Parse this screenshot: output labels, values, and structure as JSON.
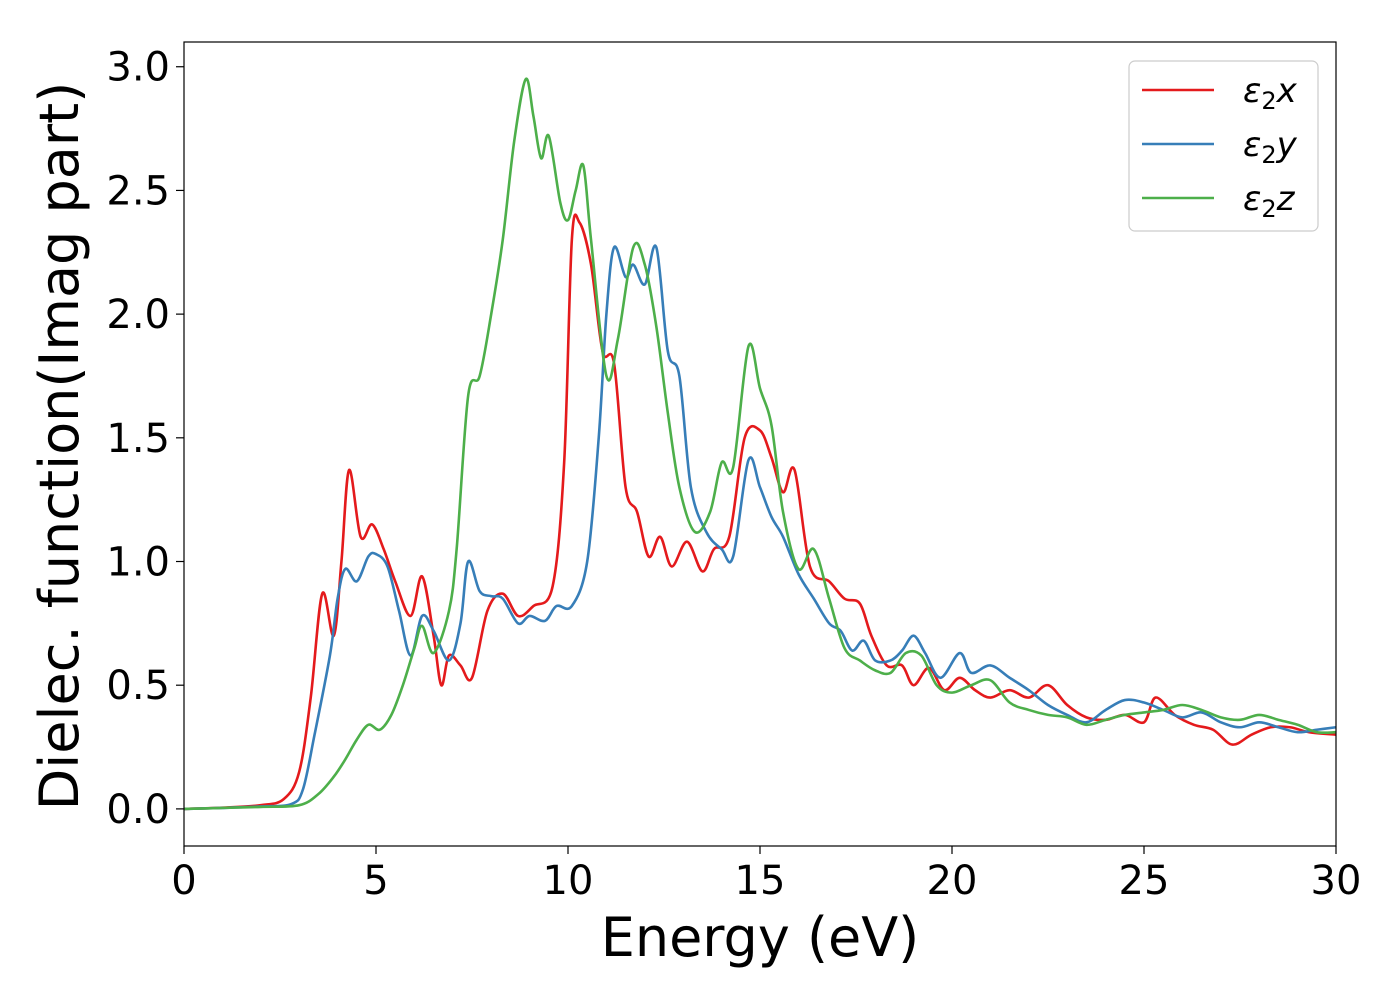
{
  "chart_data": {
    "type": "line",
    "xlabel": "Energy (eV)",
    "ylabel": "Dielec. function(Imag part)",
    "xlim": [
      0,
      30
    ],
    "ylim": [
      -0.15,
      3.1
    ],
    "xticks": [
      "0",
      "5",
      "10",
      "15",
      "20",
      "25",
      "30"
    ],
    "yticks": [
      "0.0",
      "0.5",
      "1.0",
      "1.5",
      "2.0",
      "2.5",
      "3.0"
    ],
    "legend_position": "top-right",
    "grid": false,
    "series": [
      {
        "name": "ε2x",
        "legend_main": "ε",
        "legend_sub": "2",
        "legend_suffix": "x",
        "color": "#e41a1c",
        "points": [
          [
            0,
            0
          ],
          [
            1,
            0.005
          ],
          [
            2,
            0.015
          ],
          [
            2.6,
            0.04
          ],
          [
            3.0,
            0.15
          ],
          [
            3.3,
            0.45
          ],
          [
            3.6,
            0.87
          ],
          [
            3.9,
            0.7
          ],
          [
            4.1,
            1.0
          ],
          [
            4.3,
            1.37
          ],
          [
            4.6,
            1.1
          ],
          [
            4.9,
            1.15
          ],
          [
            5.2,
            1.05
          ],
          [
            5.5,
            0.92
          ],
          [
            5.9,
            0.78
          ],
          [
            6.2,
            0.94
          ],
          [
            6.5,
            0.7
          ],
          [
            6.7,
            0.5
          ],
          [
            6.9,
            0.62
          ],
          [
            7.2,
            0.58
          ],
          [
            7.5,
            0.53
          ],
          [
            7.9,
            0.8
          ],
          [
            8.3,
            0.87
          ],
          [
            8.7,
            0.78
          ],
          [
            9.1,
            0.82
          ],
          [
            9.6,
            0.9
          ],
          [
            9.9,
            1.4
          ],
          [
            10.1,
            2.3
          ],
          [
            10.3,
            2.37
          ],
          [
            10.6,
            2.2
          ],
          [
            10.9,
            1.85
          ],
          [
            11.2,
            1.8
          ],
          [
            11.5,
            1.3
          ],
          [
            11.8,
            1.2
          ],
          [
            12.1,
            1.02
          ],
          [
            12.4,
            1.1
          ],
          [
            12.7,
            0.98
          ],
          [
            13.1,
            1.08
          ],
          [
            13.5,
            0.96
          ],
          [
            13.8,
            1.05
          ],
          [
            14.2,
            1.1
          ],
          [
            14.6,
            1.5
          ],
          [
            15.0,
            1.53
          ],
          [
            15.3,
            1.42
          ],
          [
            15.6,
            1.28
          ],
          [
            15.9,
            1.37
          ],
          [
            16.3,
            0.98
          ],
          [
            16.8,
            0.92
          ],
          [
            17.2,
            0.85
          ],
          [
            17.6,
            0.83
          ],
          [
            17.9,
            0.7
          ],
          [
            18.3,
            0.58
          ],
          [
            18.7,
            0.58
          ],
          [
            19.0,
            0.5
          ],
          [
            19.4,
            0.57
          ],
          [
            19.8,
            0.48
          ],
          [
            20.2,
            0.53
          ],
          [
            20.6,
            0.48
          ],
          [
            21.0,
            0.45
          ],
          [
            21.5,
            0.48
          ],
          [
            22.0,
            0.45
          ],
          [
            22.5,
            0.5
          ],
          [
            23.0,
            0.42
          ],
          [
            23.5,
            0.37
          ],
          [
            24.0,
            0.36
          ],
          [
            24.5,
            0.38
          ],
          [
            25.0,
            0.35
          ],
          [
            25.3,
            0.45
          ],
          [
            25.8,
            0.38
          ],
          [
            26.3,
            0.34
          ],
          [
            26.8,
            0.32
          ],
          [
            27.3,
            0.26
          ],
          [
            27.8,
            0.3
          ],
          [
            28.3,
            0.33
          ],
          [
            28.8,
            0.33
          ],
          [
            29.3,
            0.31
          ],
          [
            30,
            0.3
          ]
        ]
      },
      {
        "name": "ε2y",
        "legend_main": "ε",
        "legend_sub": "2",
        "legend_suffix": "y",
        "color": "#377eb8",
        "points": [
          [
            0,
            0
          ],
          [
            1,
            0.004
          ],
          [
            2,
            0.01
          ],
          [
            2.8,
            0.02
          ],
          [
            3.1,
            0.08
          ],
          [
            3.4,
            0.3
          ],
          [
            3.8,
            0.62
          ],
          [
            4.0,
            0.85
          ],
          [
            4.2,
            0.97
          ],
          [
            4.5,
            0.92
          ],
          [
            4.8,
            1.02
          ],
          [
            5.0,
            1.03
          ],
          [
            5.3,
            0.98
          ],
          [
            5.6,
            0.8
          ],
          [
            5.9,
            0.62
          ],
          [
            6.2,
            0.78
          ],
          [
            6.5,
            0.72
          ],
          [
            6.9,
            0.6
          ],
          [
            7.2,
            0.75
          ],
          [
            7.4,
            1.0
          ],
          [
            7.7,
            0.88
          ],
          [
            8.0,
            0.86
          ],
          [
            8.3,
            0.85
          ],
          [
            8.7,
            0.75
          ],
          [
            9.0,
            0.78
          ],
          [
            9.4,
            0.76
          ],
          [
            9.7,
            0.82
          ],
          [
            10.1,
            0.82
          ],
          [
            10.5,
            1.0
          ],
          [
            10.8,
            1.5
          ],
          [
            11.0,
            2.0
          ],
          [
            11.2,
            2.27
          ],
          [
            11.5,
            2.15
          ],
          [
            11.7,
            2.2
          ],
          [
            12.0,
            2.12
          ],
          [
            12.3,
            2.27
          ],
          [
            12.6,
            1.85
          ],
          [
            12.9,
            1.75
          ],
          [
            13.2,
            1.3
          ],
          [
            13.6,
            1.12
          ],
          [
            14.0,
            1.05
          ],
          [
            14.3,
            1.02
          ],
          [
            14.7,
            1.41
          ],
          [
            15.0,
            1.3
          ],
          [
            15.3,
            1.18
          ],
          [
            15.6,
            1.1
          ],
          [
            16.0,
            0.95
          ],
          [
            16.4,
            0.85
          ],
          [
            16.8,
            0.75
          ],
          [
            17.1,
            0.72
          ],
          [
            17.4,
            0.64
          ],
          [
            17.7,
            0.68
          ],
          [
            18.0,
            0.6
          ],
          [
            18.4,
            0.6
          ],
          [
            18.7,
            0.64
          ],
          [
            19.0,
            0.7
          ],
          [
            19.3,
            0.63
          ],
          [
            19.7,
            0.53
          ],
          [
            20.2,
            0.63
          ],
          [
            20.5,
            0.55
          ],
          [
            21.0,
            0.58
          ],
          [
            21.5,
            0.53
          ],
          [
            22.0,
            0.48
          ],
          [
            22.5,
            0.42
          ],
          [
            23.0,
            0.38
          ],
          [
            23.5,
            0.35
          ],
          [
            24.0,
            0.4
          ],
          [
            24.5,
            0.44
          ],
          [
            25.0,
            0.43
          ],
          [
            25.5,
            0.4
          ],
          [
            26.0,
            0.37
          ],
          [
            26.5,
            0.39
          ],
          [
            27.0,
            0.35
          ],
          [
            27.5,
            0.33
          ],
          [
            28.0,
            0.35
          ],
          [
            28.5,
            0.33
          ],
          [
            29.0,
            0.31
          ],
          [
            29.5,
            0.32
          ],
          [
            30,
            0.33
          ]
        ]
      },
      {
        "name": "ε2z",
        "legend_main": "ε",
        "legend_sub": "2",
        "legend_suffix": "z",
        "color": "#4daf4a",
        "points": [
          [
            0,
            0
          ],
          [
            1,
            0.004
          ],
          [
            2,
            0.008
          ],
          [
            3.0,
            0.015
          ],
          [
            3.5,
            0.06
          ],
          [
            3.9,
            0.13
          ],
          [
            4.2,
            0.2
          ],
          [
            4.5,
            0.28
          ],
          [
            4.8,
            0.34
          ],
          [
            5.1,
            0.32
          ],
          [
            5.4,
            0.38
          ],
          [
            5.7,
            0.5
          ],
          [
            6.0,
            0.65
          ],
          [
            6.2,
            0.74
          ],
          [
            6.5,
            0.63
          ],
          [
            6.9,
            0.8
          ],
          [
            7.1,
            1.05
          ],
          [
            7.4,
            1.67
          ],
          [
            7.7,
            1.75
          ],
          [
            8.0,
            2.0
          ],
          [
            8.3,
            2.3
          ],
          [
            8.6,
            2.7
          ],
          [
            8.9,
            2.95
          ],
          [
            9.1,
            2.8
          ],
          [
            9.3,
            2.63
          ],
          [
            9.5,
            2.72
          ],
          [
            9.8,
            2.45
          ],
          [
            10.0,
            2.38
          ],
          [
            10.2,
            2.5
          ],
          [
            10.4,
            2.6
          ],
          [
            10.6,
            2.3
          ],
          [
            11.0,
            1.75
          ],
          [
            11.3,
            1.9
          ],
          [
            11.7,
            2.27
          ],
          [
            12.0,
            2.2
          ],
          [
            12.3,
            1.95
          ],
          [
            12.6,
            1.6
          ],
          [
            12.9,
            1.3
          ],
          [
            13.3,
            1.12
          ],
          [
            13.7,
            1.2
          ],
          [
            14.0,
            1.4
          ],
          [
            14.3,
            1.38
          ],
          [
            14.7,
            1.87
          ],
          [
            15.0,
            1.7
          ],
          [
            15.3,
            1.55
          ],
          [
            15.6,
            1.2
          ],
          [
            16.0,
            0.97
          ],
          [
            16.4,
            1.05
          ],
          [
            16.8,
            0.85
          ],
          [
            17.2,
            0.65
          ],
          [
            17.6,
            0.6
          ],
          [
            18.0,
            0.56
          ],
          [
            18.4,
            0.55
          ],
          [
            18.8,
            0.63
          ],
          [
            19.2,
            0.62
          ],
          [
            19.6,
            0.5
          ],
          [
            20.0,
            0.47
          ],
          [
            20.5,
            0.5
          ],
          [
            21.0,
            0.52
          ],
          [
            21.5,
            0.43
          ],
          [
            22.0,
            0.4
          ],
          [
            22.5,
            0.38
          ],
          [
            23.0,
            0.37
          ],
          [
            23.5,
            0.34
          ],
          [
            24.0,
            0.36
          ],
          [
            24.5,
            0.38
          ],
          [
            25.0,
            0.39
          ],
          [
            25.5,
            0.4
          ],
          [
            26.0,
            0.42
          ],
          [
            26.5,
            0.4
          ],
          [
            27.0,
            0.37
          ],
          [
            27.5,
            0.36
          ],
          [
            28.0,
            0.38
          ],
          [
            28.5,
            0.36
          ],
          [
            29.0,
            0.34
          ],
          [
            29.5,
            0.31
          ],
          [
            30,
            0.31
          ]
        ]
      }
    ]
  }
}
